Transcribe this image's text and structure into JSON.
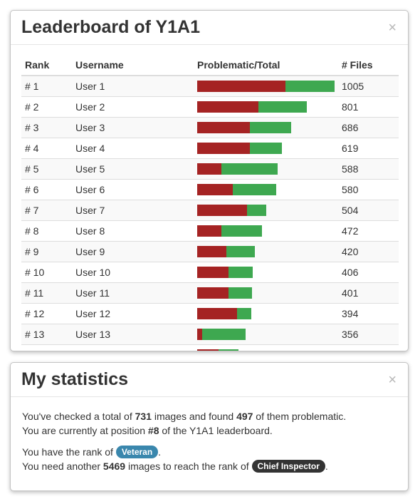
{
  "leaderboard": {
    "title": "Leaderboard of Y1A1",
    "close": "×",
    "columns": [
      "Rank",
      "Username",
      "Problematic/Total",
      "# Files"
    ],
    "rows": [
      {
        "rank": "# 1",
        "user": "User 1",
        "files": "1005",
        "problematic_fraction": 0.645
      },
      {
        "rank": "# 2",
        "user": "User 2",
        "files": "801",
        "problematic_fraction": 0.56
      },
      {
        "rank": "# 3",
        "user": "User 3",
        "files": "686",
        "problematic_fraction": 0.56
      },
      {
        "rank": "# 4",
        "user": "User 4",
        "files": "619",
        "problematic_fraction": 0.62
      },
      {
        "rank": "# 5",
        "user": "User 5",
        "files": "588",
        "problematic_fraction": 0.3
      },
      {
        "rank": "# 6",
        "user": "User 6",
        "files": "580",
        "problematic_fraction": 0.45
      },
      {
        "rank": "# 7",
        "user": "User 7",
        "files": "504",
        "problematic_fraction": 0.72
      },
      {
        "rank": "# 8",
        "user": "User 8",
        "files": "472",
        "problematic_fraction": 0.37
      },
      {
        "rank": "# 9",
        "user": "User 9",
        "files": "420",
        "problematic_fraction": 0.51
      },
      {
        "rank": "# 10",
        "user": "User 10",
        "files": "406",
        "problematic_fraction": 0.56
      },
      {
        "rank": "# 11",
        "user": "User 11",
        "files": "401",
        "problematic_fraction": 0.57
      },
      {
        "rank": "# 12",
        "user": "User 12",
        "files": "394",
        "problematic_fraction": 0.74
      },
      {
        "rank": "# 13",
        "user": "User 13",
        "files": "356",
        "problematic_fraction": 0.1
      },
      {
        "rank": "",
        "user": "",
        "files": "",
        "problematic_fraction": 0.52
      }
    ],
    "max_files": 1005,
    "colors": {
      "problematic": "#a52323",
      "ok": "#3ea850"
    }
  },
  "stats": {
    "title": "My statistics",
    "close": "×",
    "line1_pre": "You've checked a total of ",
    "total_images": "731",
    "line1_mid": " images and found ",
    "problematic": "497",
    "line1_post": " of them problematic.",
    "line2_pre": "You are currently at position ",
    "position": "#8",
    "line2_post": " of the Y1A1 leaderboard.",
    "line3_pre": "You have the rank of ",
    "rank": "Veteran",
    "line3_post": ".",
    "line4_pre": "You need another ",
    "needed": "5469",
    "line4_mid": " images to reach the rank of ",
    "next_rank": "Chief Inspector",
    "line4_post": "."
  }
}
